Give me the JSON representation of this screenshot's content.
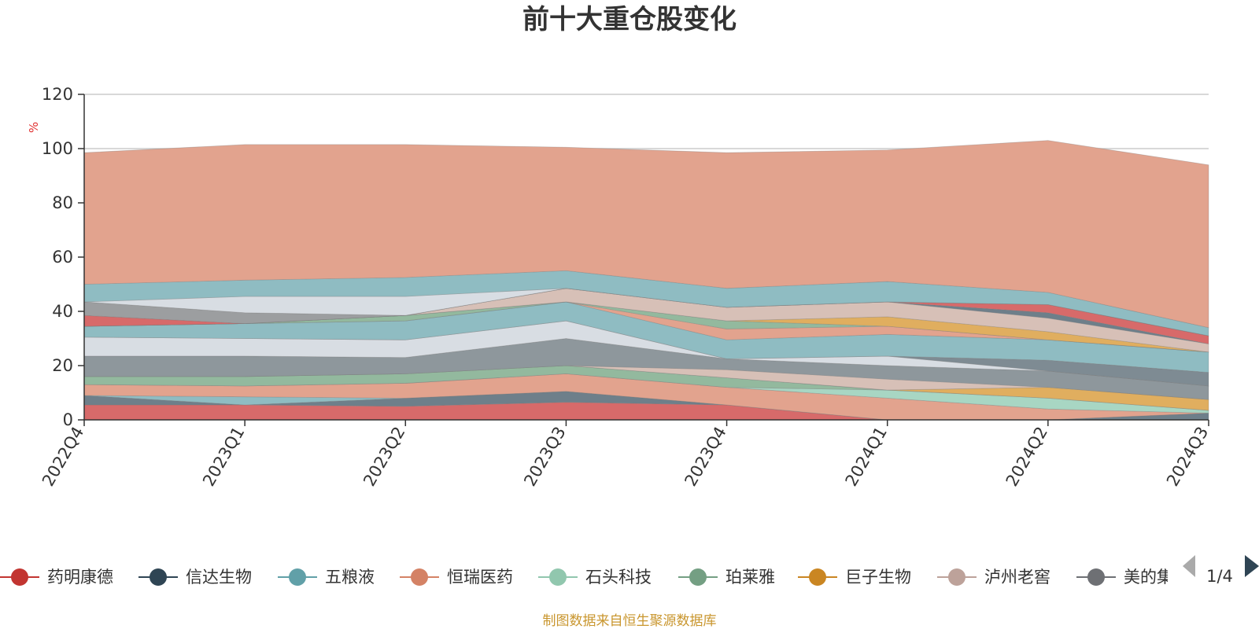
{
  "chart_data": {
    "type": "area",
    "title": "前十大重仓股变化",
    "ylabel": "%",
    "ylim": [
      0,
      120
    ],
    "yticks": [
      0,
      20,
      40,
      60,
      80,
      100,
      120
    ],
    "categories": [
      "2022Q4",
      "2023Q1",
      "2023Q2",
      "2023Q3",
      "2023Q4",
      "2024Q1",
      "2024Q2",
      "2024Q3"
    ],
    "grid": true,
    "stacked": true,
    "series": [
      {
        "name": "药明康德",
        "color": "#d76a6a",
        "values": [
          5.5,
          5.5,
          5,
          6.5,
          5.5,
          0,
          0,
          0
        ]
      },
      {
        "name": "信达生物",
        "color": "#6e7f8a",
        "values": [
          3.5,
          0,
          3,
          4,
          0,
          0,
          0,
          2.5
        ]
      },
      {
        "name": "五粮液",
        "color": "#8fbcc2",
        "values": [
          0,
          3,
          0,
          0,
          0,
          0,
          0,
          0
        ]
      },
      {
        "name": "恒瑞医药",
        "color": "#e2a38e",
        "values": [
          4,
          4,
          5.5,
          6.5,
          6.5,
          8,
          4,
          0
        ]
      },
      {
        "name": "石头科技",
        "color": "#a8d6c3",
        "values": [
          0,
          0,
          0,
          0,
          0,
          3,
          4,
          1
        ]
      },
      {
        "name": "珀莱雅",
        "color": "#93b99e",
        "values": [
          3,
          3.5,
          3.5,
          3,
          3.5,
          0,
          0,
          0
        ]
      },
      {
        "name": "巨子生物",
        "color": "#e0ae5f",
        "values": [
          0,
          0,
          0,
          0,
          0,
          0,
          4,
          4
        ]
      },
      {
        "name": "泸州老窖",
        "color": "#d7c0b7",
        "values": [
          0,
          0,
          0,
          0,
          3,
          4,
          0,
          0
        ]
      },
      {
        "name": "美的集团",
        "color": "#8e979c",
        "values": [
          7.5,
          7.5,
          6,
          10,
          4,
          5,
          6,
          5
        ]
      },
      {
        "name": "",
        "color": "#d8dde3",
        "values": [
          7,
          6.5,
          6.5,
          6.5,
          0,
          3.5,
          0,
          0
        ]
      },
      {
        "name": "",
        "color": "#7e8b93",
        "values": [
          0,
          0,
          0,
          0,
          0,
          0,
          4,
          5
        ]
      },
      {
        "name": "",
        "color": "#8fbcc2",
        "values": [
          4,
          5.5,
          7,
          7,
          7,
          8,
          7.5,
          7.5
        ]
      },
      {
        "name": "",
        "color": "#e2a38e",
        "values": [
          0,
          0,
          0,
          0,
          4,
          3,
          0,
          0
        ]
      },
      {
        "name": "",
        "color": "#93b99e",
        "values": [
          0,
          0,
          2,
          0,
          3,
          0,
          0,
          0
        ]
      },
      {
        "name": "",
        "color": "#e0ae5f",
        "values": [
          0,
          0,
          0,
          0,
          0,
          3.5,
          3,
          0
        ]
      },
      {
        "name": "",
        "color": "#d7c0b7",
        "values": [
          0,
          0,
          0,
          5,
          5,
          5.5,
          5,
          3
        ]
      },
      {
        "name": "",
        "color": "#6e7f8a",
        "values": [
          0,
          0,
          0,
          0,
          0,
          0,
          2,
          0
        ]
      },
      {
        "name": "",
        "color": "#d76a6a",
        "values": [
          4,
          0,
          0,
          0,
          0,
          0,
          3,
          3
        ]
      },
      {
        "name": "",
        "color": "#9c9ea0",
        "values": [
          5,
          4,
          0,
          0,
          0,
          0,
          0,
          0
        ]
      },
      {
        "name": "",
        "color": "#d8dde3",
        "values": [
          0,
          6,
          7,
          0,
          0,
          0,
          0,
          0
        ]
      },
      {
        "name": "",
        "color": "#8fbcc2",
        "values": [
          6.5,
          6,
          7,
          6.5,
          7,
          7.5,
          4.5,
          3
        ]
      },
      {
        "name": "",
        "color": "#e2a38e",
        "values": [
          48.5,
          50,
          49,
          45.5,
          50,
          48.5,
          56,
          60
        ]
      }
    ]
  },
  "legend": {
    "items": [
      {
        "label": "药明康德",
        "color": "#c23531"
      },
      {
        "label": "信达生物",
        "color": "#2f4554"
      },
      {
        "label": "五粮液",
        "color": "#61a0a8"
      },
      {
        "label": "恒瑞医药",
        "color": "#d48265"
      },
      {
        "label": "石头科技",
        "color": "#91c7ae"
      },
      {
        "label": "珀莱雅",
        "color": "#749f83"
      },
      {
        "label": "巨子生物",
        "color": "#ca8622"
      },
      {
        "label": "泸州老窖",
        "color": "#bda29a"
      },
      {
        "label": "美的集",
        "color": "#6e7074"
      }
    ],
    "page_indicator": "1/4",
    "prev_icon": "triangle-left-icon",
    "next_icon": "triangle-right-icon"
  },
  "footer": {
    "source": "制图数据来自恒生聚源数据库"
  }
}
